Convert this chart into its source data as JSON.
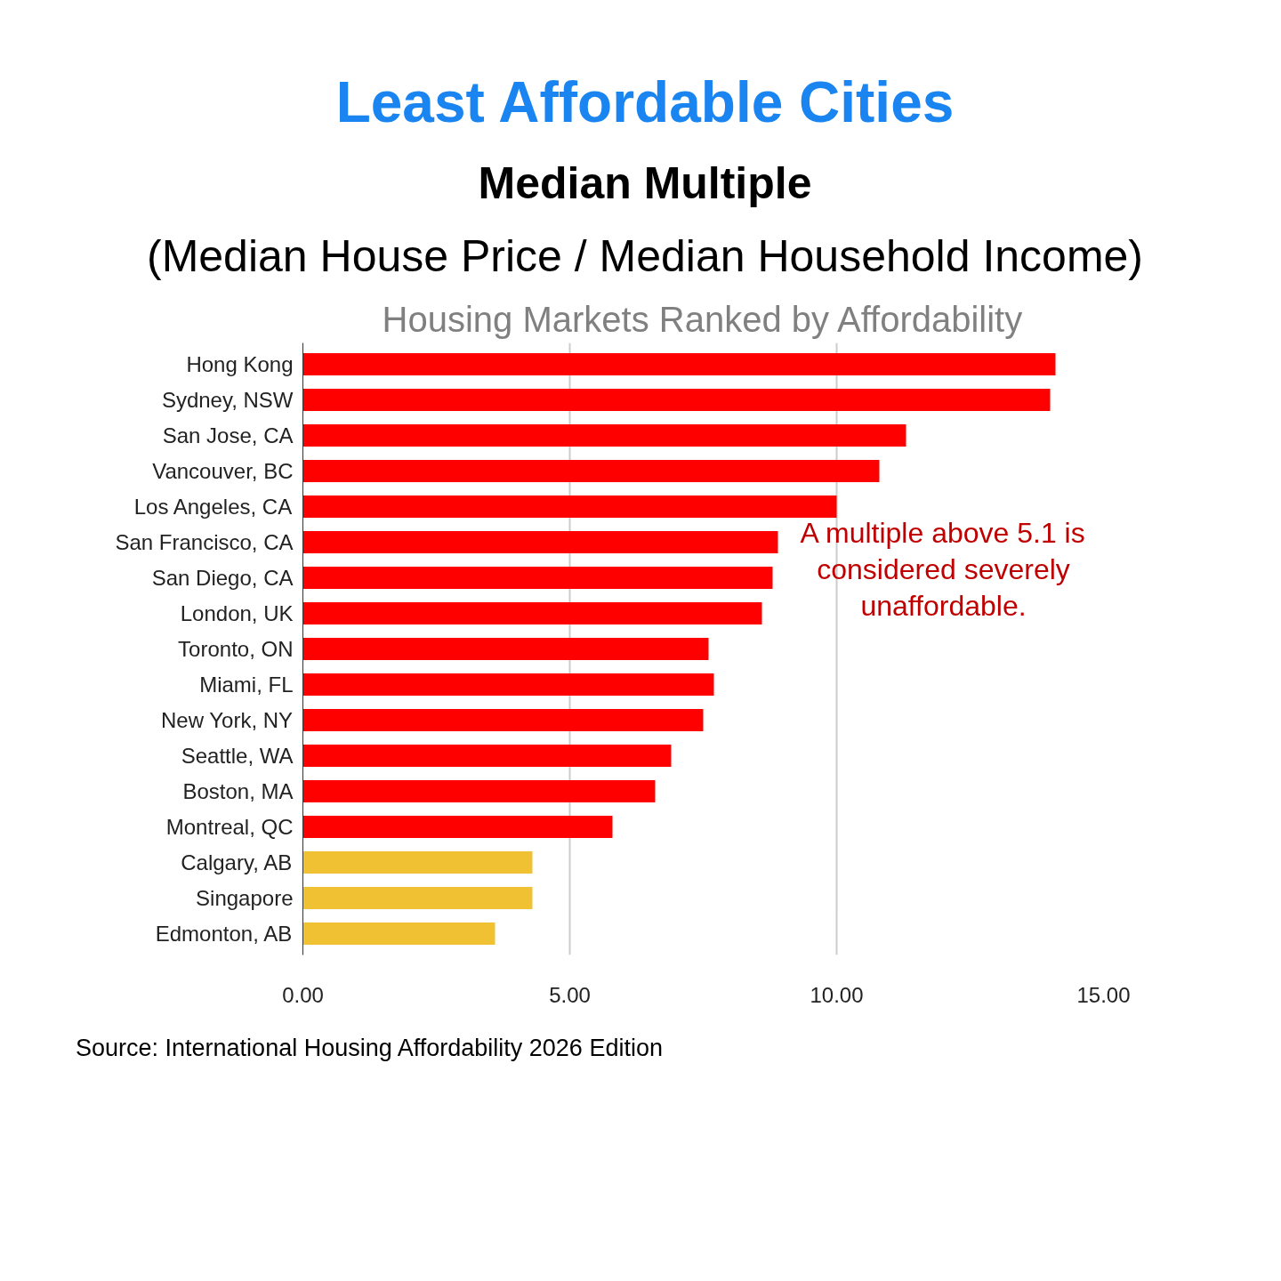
{
  "chart_data": {
    "type": "bar",
    "orientation": "horizontal",
    "title": "Least Affordable Cities",
    "subtitle": "Median Multiple",
    "categories": [
      "Hong Kong",
      "Sydney, NSW",
      "San Jose, CA",
      "Vancouver, BC",
      "Los Angeles, CA",
      "San Francisco, CA",
      "San Diego, CA",
      "London, UK",
      "Toronto, ON",
      "Miami, FL",
      "New York, NY",
      "Seattle, WA",
      "Boston, MA",
      "Montreal, QC",
      "Calgary, AB",
      "Singapore",
      "Edmonton, AB"
    ],
    "values": [
      14.1,
      14.0,
      11.3,
      10.8,
      10.0,
      8.9,
      8.8,
      8.6,
      7.6,
      7.7,
      7.5,
      6.9,
      6.6,
      5.8,
      4.3,
      4.3,
      3.6
    ],
    "colors": [
      "#ff0000",
      "#ff0000",
      "#ff0000",
      "#ff0000",
      "#ff0000",
      "#ff0000",
      "#ff0000",
      "#ff0000",
      "#ff0000",
      "#ff0000",
      "#ff0000",
      "#ff0000",
      "#ff0000",
      "#ff0000",
      "#f0c233",
      "#f0c233",
      "#f0c233"
    ],
    "xlim": [
      0,
      15
    ],
    "xticks": [
      {
        "value": 0,
        "label": "0.00"
      },
      {
        "value": 5,
        "label": "5.00"
      },
      {
        "value": 10,
        "label": "10.00"
      },
      {
        "value": 15,
        "label": "15.00"
      }
    ],
    "grid": "x",
    "annotations": [
      "(Median House Price / Median Household Income)",
      "Housing Markets Ranked by Affordability",
      "A multiple above 5.1 is considered severely unaffordable.",
      "Source: International Housing Affordability 2026 Edition"
    ]
  }
}
